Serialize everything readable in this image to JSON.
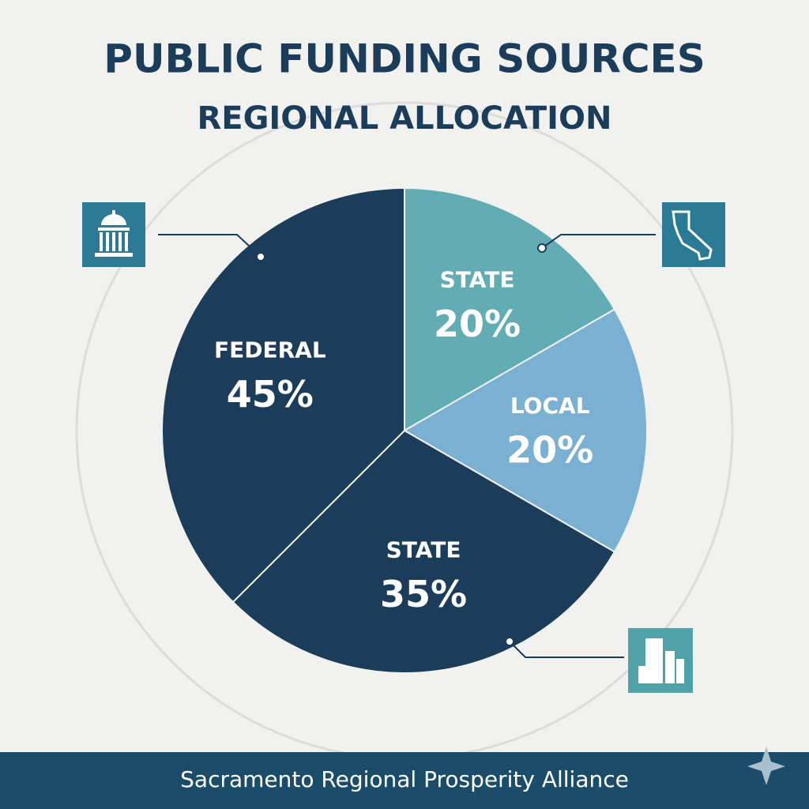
{
  "chart_data": {
    "type": "pie",
    "title": "PUBLIC FUNDING SOURCES",
    "subtitle": "REGIONAL ALLOCATION",
    "categories": [
      "STATE",
      "LOCAL",
      "STATE",
      "FEDERAL"
    ],
    "values": [
      20,
      20,
      35,
      45
    ],
    "value_labels": [
      "20%",
      "20%",
      "35%",
      "45%"
    ],
    "colors": [
      "#62acb3",
      "#7ab0d2",
      "#1c3d5a",
      "#1c3d5a"
    ]
  },
  "footer": "Sacramento Regional Prosperity Alliance"
}
